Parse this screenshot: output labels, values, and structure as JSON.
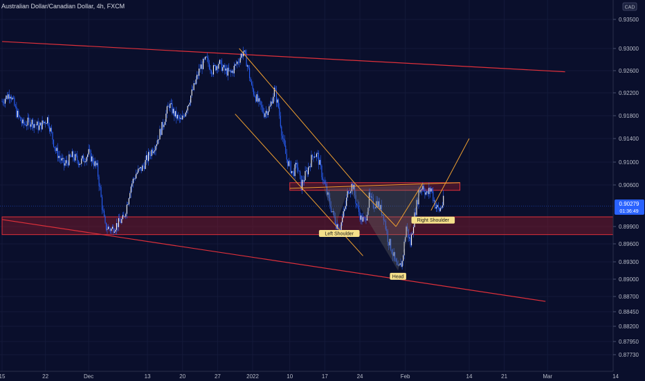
{
  "header": {
    "title": "Australian Dollar/Canadian Dollar, 4h, FXCM",
    "currency_badge": "CAD"
  },
  "price_tag": {
    "price": "0.90279",
    "countdown": "01:36:49",
    "value": 0.90279
  },
  "colors": {
    "background": "#0a0f2c",
    "candle": "#2962ff",
    "channel_line": "#e0303a",
    "zone_fill": "#8a1a2a",
    "pattern_line": "#f0a030",
    "price_tag": "#2962ff",
    "label_bg": "#f5e08a"
  },
  "chart_data": {
    "type": "candlestick",
    "title": "Australian Dollar/Canadian Dollar, 4h, FXCM",
    "ylim": [
      0.876,
      0.937
    ],
    "y_ticks": [
      {
        "label": "0.93500",
        "value": 0.935
      },
      {
        "label": "0.93000",
        "value": 0.93
      },
      {
        "label": "0.92600",
        "value": 0.926
      },
      {
        "label": "0.92200",
        "value": 0.922
      },
      {
        "label": "0.91800",
        "value": 0.918
      },
      {
        "label": "0.91400",
        "value": 0.914
      },
      {
        "label": "0.91000",
        "value": 0.91
      },
      {
        "label": "0.90600",
        "value": 0.906
      },
      {
        "label": "0.89900",
        "value": 0.899
      },
      {
        "label": "0.89600",
        "value": 0.896
      },
      {
        "label": "0.89300",
        "value": 0.893
      },
      {
        "label": "0.89000",
        "value": 0.89
      },
      {
        "label": "0.88700",
        "value": 0.887
      },
      {
        "label": "0.88450",
        "value": 0.8845
      },
      {
        "label": "0.88200",
        "value": 0.882
      },
      {
        "label": "0.87950",
        "value": 0.8795
      },
      {
        "label": "0.87730",
        "value": 0.8773
      }
    ],
    "x_ticks": [
      {
        "label": "15",
        "bar": 0
      },
      {
        "label": "22",
        "bar": 42
      },
      {
        "label": "Dec",
        "bar": 84
      },
      {
        "label": "13",
        "bar": 141
      },
      {
        "label": "20",
        "bar": 175
      },
      {
        "label": "27",
        "bar": 209
      },
      {
        "label": "2022",
        "bar": 243
      },
      {
        "label": "10",
        "bar": 279
      },
      {
        "label": "17",
        "bar": 313
      },
      {
        "label": "24",
        "bar": 347
      },
      {
        "label": "Feb",
        "bar": 391
      },
      {
        "label": "14",
        "bar": 453
      },
      {
        "label": "21",
        "bar": 487
      },
      {
        "label": "Mar",
        "bar": 529
      },
      {
        "label": "14",
        "bar": 595
      }
    ],
    "bars_visible": 420,
    "path_points": [
      [
        0,
        0.9205
      ],
      [
        8,
        0.922
      ],
      [
        14,
        0.9185
      ],
      [
        20,
        0.9165
      ],
      [
        28,
        0.917
      ],
      [
        36,
        0.916
      ],
      [
        44,
        0.9175
      ],
      [
        52,
        0.912
      ],
      [
        60,
        0.9095
      ],
      [
        68,
        0.911
      ],
      [
        76,
        0.91
      ],
      [
        84,
        0.9115
      ],
      [
        92,
        0.909
      ],
      [
        100,
        0.899
      ],
      [
        106,
        0.8985
      ],
      [
        112,
        0.8995
      ],
      [
        118,
        0.9005
      ],
      [
        124,
        0.9055
      ],
      [
        130,
        0.908
      ],
      [
        136,
        0.909
      ],
      [
        142,
        0.911
      ],
      [
        150,
        0.9135
      ],
      [
        156,
        0.9165
      ],
      [
        162,
        0.92
      ],
      [
        168,
        0.918
      ],
      [
        174,
        0.917
      ],
      [
        180,
        0.92
      ],
      [
        186,
        0.923
      ],
      [
        192,
        0.9265
      ],
      [
        198,
        0.928
      ],
      [
        204,
        0.926
      ],
      [
        210,
        0.9275
      ],
      [
        216,
        0.926
      ],
      [
        222,
        0.9255
      ],
      [
        228,
        0.9275
      ],
      [
        234,
        0.9295
      ],
      [
        238,
        0.927
      ],
      [
        242,
        0.923
      ],
      [
        248,
        0.9205
      ],
      [
        254,
        0.9185
      ],
      [
        260,
        0.9195
      ],
      [
        264,
        0.9225
      ],
      [
        268,
        0.9195
      ],
      [
        272,
        0.914
      ],
      [
        276,
        0.9105
      ],
      [
        282,
        0.908
      ],
      [
        286,
        0.9095
      ],
      [
        290,
        0.906
      ],
      [
        296,
        0.9085
      ],
      [
        302,
        0.9115
      ],
      [
        306,
        0.911
      ],
      [
        312,
        0.9065
      ],
      [
        318,
        0.903
      ],
      [
        324,
        0.8995
      ],
      [
        328,
        0.899
      ],
      [
        332,
        0.902
      ],
      [
        336,
        0.9055
      ],
      [
        340,
        0.906
      ],
      [
        344,
        0.903
      ],
      [
        348,
        0.9005
      ],
      [
        352,
        0.9
      ],
      [
        356,
        0.904
      ],
      [
        360,
        0.903
      ],
      [
        364,
        0.9035
      ],
      [
        370,
        0.901
      ],
      [
        374,
        0.897
      ],
      [
        378,
        0.895
      ],
      [
        382,
        0.8925
      ],
      [
        384,
        0.8915
      ],
      [
        388,
        0.893
      ],
      [
        392,
        0.899
      ],
      [
        396,
        0.896
      ],
      [
        400,
        0.901
      ],
      [
        404,
        0.905
      ],
      [
        408,
        0.906
      ],
      [
        412,
        0.9045
      ],
      [
        416,
        0.9055
      ],
      [
        420,
        0.903
      ],
      [
        424,
        0.902
      ],
      [
        428,
        0.9035
      ]
    ],
    "zones": [
      {
        "from_bar": 0,
        "to_bar": 595,
        "top": 0.9008,
        "bottom": 0.8976
      },
      {
        "from_bar": 279,
        "to_bar": 444,
        "top": 0.9064,
        "bottom": 0.9052
      }
    ],
    "channel_lines": [
      {
        "from": [
          0,
          0.9312
        ],
        "to": [
          546,
          0.9258
        ]
      },
      {
        "from": [
          0,
          0.9003
        ],
        "to": [
          527,
          0.8862
        ]
      }
    ],
    "pattern_lines": [
      {
        "from": [
          230,
          0.93
        ],
        "to": [
          342,
          0.9063
        ]
      },
      {
        "from": [
          226,
          0.9183
        ],
        "to": [
          350,
          0.894
        ]
      },
      {
        "from": [
          279,
          0.9055
        ],
        "to": [
          444,
          0.9064
        ]
      },
      {
        "from": [
          342,
          0.9063
        ],
        "to": [
          382,
          0.899
        ]
      },
      {
        "from": [
          382,
          0.899
        ],
        "to": [
          408,
          0.9063
        ]
      },
      {
        "from": [
          416,
          0.902
        ],
        "to": [
          453,
          0.914
        ]
      }
    ],
    "head_shoulders_fill": [
      [
        312,
        0.9055
      ],
      [
        324,
        0.8995
      ],
      [
        336,
        0.9055
      ],
      [
        384,
        0.8915
      ],
      [
        408,
        0.906
      ]
    ],
    "annotations": [
      {
        "text": "Left Shoulder",
        "bar": 327,
        "value": 0.8978
      },
      {
        "text": "Head",
        "bar": 384,
        "value": 0.8905
      },
      {
        "text": "Right Shoulder",
        "bar": 418,
        "value": 0.9002
      }
    ]
  }
}
